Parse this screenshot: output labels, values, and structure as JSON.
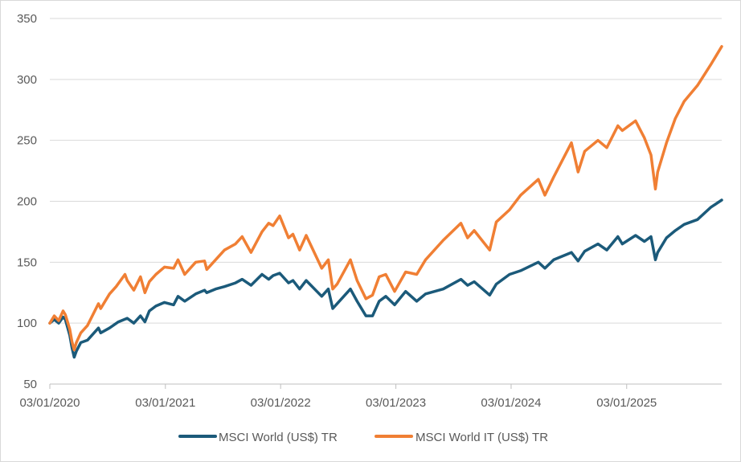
{
  "chart_data": {
    "type": "line",
    "title": "",
    "xlabel": "",
    "ylabel": "",
    "ylim": [
      50,
      350
    ],
    "yticks": [
      50,
      100,
      150,
      200,
      250,
      300,
      350
    ],
    "xlim": [
      "2020-01-03",
      "2025-10-31"
    ],
    "xticks": [
      "03/01/2020",
      "03/01/2021",
      "03/01/2022",
      "03/01/2023",
      "03/01/2024",
      "03/01/2025"
    ],
    "grid": "horizontal",
    "legend": "bottom",
    "series": [
      {
        "name": "MSCI World (US$) TR",
        "color": "#1b5a7a",
        "points": [
          [
            "2020-01-03",
            100
          ],
          [
            "2020-01-17",
            103
          ],
          [
            "2020-01-31",
            100
          ],
          [
            "2020-02-14",
            105
          ],
          [
            "2020-02-21",
            103
          ],
          [
            "2020-03-06",
            90
          ],
          [
            "2020-03-13",
            80
          ],
          [
            "2020-03-20",
            72
          ],
          [
            "2020-03-27",
            77
          ],
          [
            "2020-04-10",
            84
          ],
          [
            "2020-05-01",
            86
          ],
          [
            "2020-06-05",
            96
          ],
          [
            "2020-06-12",
            92
          ],
          [
            "2020-07-10",
            96
          ],
          [
            "2020-08-07",
            101
          ],
          [
            "2020-09-04",
            104
          ],
          [
            "2020-09-25",
            100
          ],
          [
            "2020-10-16",
            106
          ],
          [
            "2020-10-30",
            101
          ],
          [
            "2020-11-13",
            110
          ],
          [
            "2020-12-04",
            114
          ],
          [
            "2020-12-31",
            117
          ],
          [
            "2021-01-29",
            115
          ],
          [
            "2021-02-12",
            122
          ],
          [
            "2021-03-05",
            118
          ],
          [
            "2021-04-09",
            124
          ],
          [
            "2021-05-07",
            127
          ],
          [
            "2021-05-14",
            125
          ],
          [
            "2021-06-11",
            128
          ],
          [
            "2021-07-09",
            130
          ],
          [
            "2021-08-13",
            133
          ],
          [
            "2021-09-03",
            136
          ],
          [
            "2021-10-01",
            131
          ],
          [
            "2021-11-05",
            140
          ],
          [
            "2021-11-26",
            136
          ],
          [
            "2021-12-10",
            139
          ],
          [
            "2021-12-31",
            141
          ],
          [
            "2022-01-28",
            133
          ],
          [
            "2022-02-11",
            135
          ],
          [
            "2022-03-04",
            128
          ],
          [
            "2022-03-25",
            135
          ],
          [
            "2022-05-13",
            122
          ],
          [
            "2022-06-03",
            128
          ],
          [
            "2022-06-17",
            112
          ],
          [
            "2022-07-01",
            116
          ],
          [
            "2022-08-12",
            128
          ],
          [
            "2022-09-02",
            118
          ],
          [
            "2022-09-30",
            106
          ],
          [
            "2022-10-21",
            106
          ],
          [
            "2022-11-11",
            118
          ],
          [
            "2022-12-02",
            122
          ],
          [
            "2022-12-30",
            115
          ],
          [
            "2023-02-03",
            126
          ],
          [
            "2023-03-10",
            118
          ],
          [
            "2023-04-07",
            124
          ],
          [
            "2023-06-02",
            128
          ],
          [
            "2023-07-28",
            136
          ],
          [
            "2023-08-18",
            131
          ],
          [
            "2023-09-08",
            134
          ],
          [
            "2023-10-27",
            123
          ],
          [
            "2023-11-17",
            132
          ],
          [
            "2023-12-29",
            140
          ],
          [
            "2024-02-02",
            143
          ],
          [
            "2024-03-29",
            150
          ],
          [
            "2024-04-19",
            145
          ],
          [
            "2024-05-17",
            152
          ],
          [
            "2024-07-12",
            158
          ],
          [
            "2024-08-02",
            151
          ],
          [
            "2024-08-23",
            159
          ],
          [
            "2024-10-04",
            165
          ],
          [
            "2024-11-01",
            160
          ],
          [
            "2024-12-06",
            171
          ],
          [
            "2024-12-20",
            165
          ],
          [
            "2025-01-31",
            172
          ],
          [
            "2025-02-28",
            167
          ],
          [
            "2025-03-21",
            171
          ],
          [
            "2025-04-04",
            152
          ],
          [
            "2025-04-11",
            158
          ],
          [
            "2025-05-09",
            170
          ],
          [
            "2025-06-06",
            176
          ],
          [
            "2025-07-04",
            181
          ],
          [
            "2025-08-15",
            185
          ],
          [
            "2025-09-26",
            195
          ],
          [
            "2025-10-31",
            201
          ]
        ]
      },
      {
        "name": "MSCI World IT (US$) TR",
        "color": "#f07f34",
        "points": [
          [
            "2020-01-03",
            100
          ],
          [
            "2020-01-17",
            106
          ],
          [
            "2020-01-31",
            102
          ],
          [
            "2020-02-14",
            110
          ],
          [
            "2020-02-21",
            107
          ],
          [
            "2020-03-06",
            95
          ],
          [
            "2020-03-13",
            85
          ],
          [
            "2020-03-20",
            78
          ],
          [
            "2020-03-27",
            84
          ],
          [
            "2020-04-10",
            92
          ],
          [
            "2020-05-01",
            98
          ],
          [
            "2020-06-05",
            116
          ],
          [
            "2020-06-12",
            112
          ],
          [
            "2020-07-10",
            124
          ],
          [
            "2020-07-31",
            130
          ],
          [
            "2020-08-28",
            140
          ],
          [
            "2020-09-04",
            135
          ],
          [
            "2020-09-25",
            127
          ],
          [
            "2020-10-16",
            138
          ],
          [
            "2020-10-30",
            125
          ],
          [
            "2020-11-13",
            134
          ],
          [
            "2020-12-04",
            140
          ],
          [
            "2020-12-31",
            146
          ],
          [
            "2021-01-29",
            145
          ],
          [
            "2021-02-12",
            152
          ],
          [
            "2021-03-05",
            140
          ],
          [
            "2021-04-09",
            150
          ],
          [
            "2021-05-07",
            151
          ],
          [
            "2021-05-14",
            144
          ],
          [
            "2021-06-11",
            152
          ],
          [
            "2021-07-09",
            160
          ],
          [
            "2021-08-13",
            165
          ],
          [
            "2021-09-03",
            171
          ],
          [
            "2021-10-01",
            158
          ],
          [
            "2021-11-05",
            175
          ],
          [
            "2021-11-26",
            182
          ],
          [
            "2021-12-10",
            180
          ],
          [
            "2021-12-31",
            188
          ],
          [
            "2022-01-28",
            170
          ],
          [
            "2022-02-11",
            173
          ],
          [
            "2022-03-04",
            160
          ],
          [
            "2022-03-25",
            172
          ],
          [
            "2022-05-13",
            145
          ],
          [
            "2022-06-03",
            152
          ],
          [
            "2022-06-17",
            128
          ],
          [
            "2022-07-01",
            132
          ],
          [
            "2022-08-12",
            152
          ],
          [
            "2022-09-02",
            135
          ],
          [
            "2022-09-30",
            120
          ],
          [
            "2022-10-21",
            123
          ],
          [
            "2022-11-11",
            138
          ],
          [
            "2022-12-02",
            140
          ],
          [
            "2022-12-30",
            126
          ],
          [
            "2023-02-03",
            142
          ],
          [
            "2023-03-10",
            140
          ],
          [
            "2023-04-07",
            152
          ],
          [
            "2023-06-02",
            168
          ],
          [
            "2023-07-28",
            182
          ],
          [
            "2023-08-18",
            170
          ],
          [
            "2023-09-08",
            176
          ],
          [
            "2023-10-27",
            160
          ],
          [
            "2023-11-17",
            183
          ],
          [
            "2023-12-29",
            193
          ],
          [
            "2024-02-02",
            205
          ],
          [
            "2024-03-29",
            218
          ],
          [
            "2024-04-19",
            205
          ],
          [
            "2024-05-17",
            220
          ],
          [
            "2024-07-12",
            248
          ],
          [
            "2024-08-02",
            224
          ],
          [
            "2024-08-23",
            241
          ],
          [
            "2024-10-04",
            250
          ],
          [
            "2024-11-01",
            244
          ],
          [
            "2024-12-06",
            262
          ],
          [
            "2024-12-20",
            258
          ],
          [
            "2025-01-31",
            266
          ],
          [
            "2025-02-28",
            252
          ],
          [
            "2025-03-21",
            238
          ],
          [
            "2025-04-04",
            210
          ],
          [
            "2025-04-11",
            224
          ],
          [
            "2025-05-09",
            248
          ],
          [
            "2025-06-06",
            268
          ],
          [
            "2025-07-04",
            282
          ],
          [
            "2025-08-15",
            295
          ],
          [
            "2025-09-26",
            312
          ],
          [
            "2025-10-31",
            327
          ]
        ]
      }
    ]
  }
}
